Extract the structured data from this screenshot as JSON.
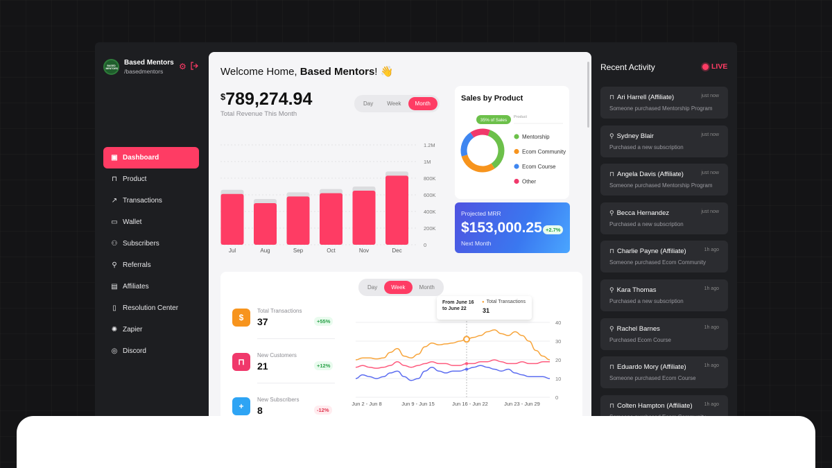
{
  "profile": {
    "name": "Based Mentors",
    "handle": "/basedmentors",
    "avatar_text": "BASED MENTORS"
  },
  "nav": [
    {
      "label": "Dashboard",
      "icon": "dashboard-icon",
      "active": true
    },
    {
      "label": "Product",
      "icon": "shopping-bag-icon"
    },
    {
      "label": "Transactions",
      "icon": "trend-icon"
    },
    {
      "label": "Wallet",
      "icon": "wallet-icon"
    },
    {
      "label": "Subscribers",
      "icon": "users-icon"
    },
    {
      "label": "Referrals",
      "icon": "user-plus-icon"
    },
    {
      "label": "Affiliates",
      "icon": "id-card-icon"
    },
    {
      "label": "Resolution Center",
      "icon": "document-icon"
    },
    {
      "label": "Zapier",
      "icon": "zapier-icon"
    },
    {
      "label": "Discord",
      "icon": "discord-icon"
    }
  ],
  "header": {
    "welcome_prefix": "Welcome Home, ",
    "welcome_name": "Based Mentors",
    "welcome_suffix": "! 👋"
  },
  "revenue": {
    "currency": "$",
    "amount": "789,274.94",
    "label": "Total Revenue This Month"
  },
  "range_tabs_top": {
    "options": [
      "Day",
      "Week",
      "Month"
    ],
    "selected": "Month"
  },
  "range_tabs_bottom": {
    "options": [
      "Day",
      "Week",
      "Month"
    ],
    "selected": "Week"
  },
  "sales_by_product": {
    "title": "Sales by Product",
    "legend_header": "Product",
    "highlight_label": "35% of Sales",
    "items": [
      {
        "label": "Mentorship",
        "color": "#6cc04a",
        "value": 35
      },
      {
        "label": "Ecom Community",
        "color": "#f7941d",
        "value": 30
      },
      {
        "label": "Ecom Course",
        "color": "#3f86f0",
        "value": 20
      },
      {
        "label": "Other",
        "color": "#f0386b",
        "value": 15
      }
    ]
  },
  "mrr": {
    "label": "Projected MRR",
    "value": "$153,000.25",
    "badge": "+2.7%",
    "sub": "Next Month"
  },
  "stats": [
    {
      "label": "Total Transactions",
      "value": "37",
      "badge": "+55%",
      "color": "#f7941d",
      "icon": "dollar-icon",
      "positive": true
    },
    {
      "label": "New Customers",
      "value": "21",
      "badge": "+12%",
      "color": "#f0386b",
      "icon": "shopping-bag-icon",
      "positive": true
    },
    {
      "label": "New Subscribers",
      "value": "8",
      "badge": "-12%",
      "color": "#2ea4f4",
      "icon": "user-plus-icon",
      "positive": false
    }
  ],
  "tooltip": {
    "range_line1": "From June 16",
    "range_line2": "to June 22",
    "series": "Total Transactions",
    "value": "31"
  },
  "chart_data": [
    {
      "type": "bar",
      "categories": [
        "Jul",
        "Aug",
        "Sep",
        "Oct",
        "Nov",
        "Dec"
      ],
      "values": [
        610000,
        500000,
        580000,
        620000,
        650000,
        830000
      ],
      "ghost_values": [
        660000,
        550000,
        630000,
        670000,
        700000,
        880000
      ],
      "ytick_labels": [
        "1.2M",
        "1M",
        "800K",
        "600K",
        "400K",
        "200K",
        "0"
      ],
      "yticks": [
        1200000,
        1000000,
        800000,
        600000,
        400000,
        200000,
        0
      ],
      "ylim": [
        0,
        1200000
      ],
      "colors": {
        "bar": "#fe3c64",
        "ghost": "#dcdcdf"
      }
    },
    {
      "type": "line",
      "categories": [
        "Jun 2 - Jun 8",
        "Jun 9 - Jun 15",
        "Jun 16 - Jun 22",
        "Jun 23 - Jun 29"
      ],
      "x": [
        0,
        1,
        2,
        3,
        4,
        5,
        6,
        7,
        8,
        9,
        10,
        11,
        12,
        13,
        14,
        15,
        16,
        17,
        18,
        19,
        20,
        21,
        22,
        23,
        24,
        25,
        26,
        27,
        28
      ],
      "series": [
        {
          "color": "#f7a43a",
          "values": [
            20,
            21,
            21,
            20.5,
            21,
            24,
            26,
            22,
            21,
            23,
            27,
            29,
            28,
            28.5,
            29,
            30,
            31,
            32,
            33,
            35,
            36,
            34,
            33,
            35,
            33,
            30,
            25,
            22,
            20
          ]
        },
        {
          "color": "#fe5a7d",
          "values": [
            16,
            17,
            16,
            15.5,
            16,
            17,
            19,
            17,
            16,
            17,
            18,
            19,
            18,
            18,
            17,
            17,
            18,
            18,
            19,
            19,
            20,
            19,
            18,
            18,
            19,
            18,
            18,
            19,
            19
          ]
        },
        {
          "color": "#5b6cf0",
          "values": [
            10,
            12,
            11,
            10,
            11,
            13,
            14,
            11,
            9,
            10,
            14,
            16,
            14,
            13,
            14,
            14,
            15,
            16,
            17,
            16,
            15,
            14,
            15,
            13,
            12,
            11,
            11,
            11,
            10
          ]
        }
      ],
      "yticks": [
        40,
        30,
        20,
        10,
        0
      ],
      "ylim": [
        0,
        40
      ],
      "highlight_x": 16
    }
  ],
  "activity": {
    "title": "Recent Activity",
    "live_label": "LIVE",
    "items": [
      {
        "name": "Ari Harrell (Affiliate)",
        "time": "just now",
        "desc": "Someone purchased Mentorship Program",
        "icon": "bag"
      },
      {
        "name": "Sydney Blair",
        "time": "just now",
        "desc": "Purchased a new subscription",
        "icon": "user"
      },
      {
        "name": "Angela Davis (Affiliate)",
        "time": "just now",
        "desc": "Someone purchased Mentorship Program",
        "icon": "bag"
      },
      {
        "name": "Becca Hernandez",
        "time": "just now",
        "desc": "Purchased a new subscription",
        "icon": "user"
      },
      {
        "name": "Charlie Payne (Affiliate)",
        "time": "1h ago",
        "desc": "Someone purchased Ecom Community",
        "icon": "bag"
      },
      {
        "name": "Kara Thomas",
        "time": "1h ago",
        "desc": "Purchased a new subscription",
        "icon": "user"
      },
      {
        "name": "Rachel Barnes",
        "time": "1h ago",
        "desc": "Purchased Ecom Course",
        "icon": "user"
      },
      {
        "name": "Eduardo Mory (Affiliate)",
        "time": "1h ago",
        "desc": "Someone purchased Ecom Course",
        "icon": "bag"
      },
      {
        "name": "Colten Hampton (Affiliate)",
        "time": "1h ago",
        "desc": "Someone purchased Ecom Community",
        "icon": "bag"
      }
    ]
  }
}
